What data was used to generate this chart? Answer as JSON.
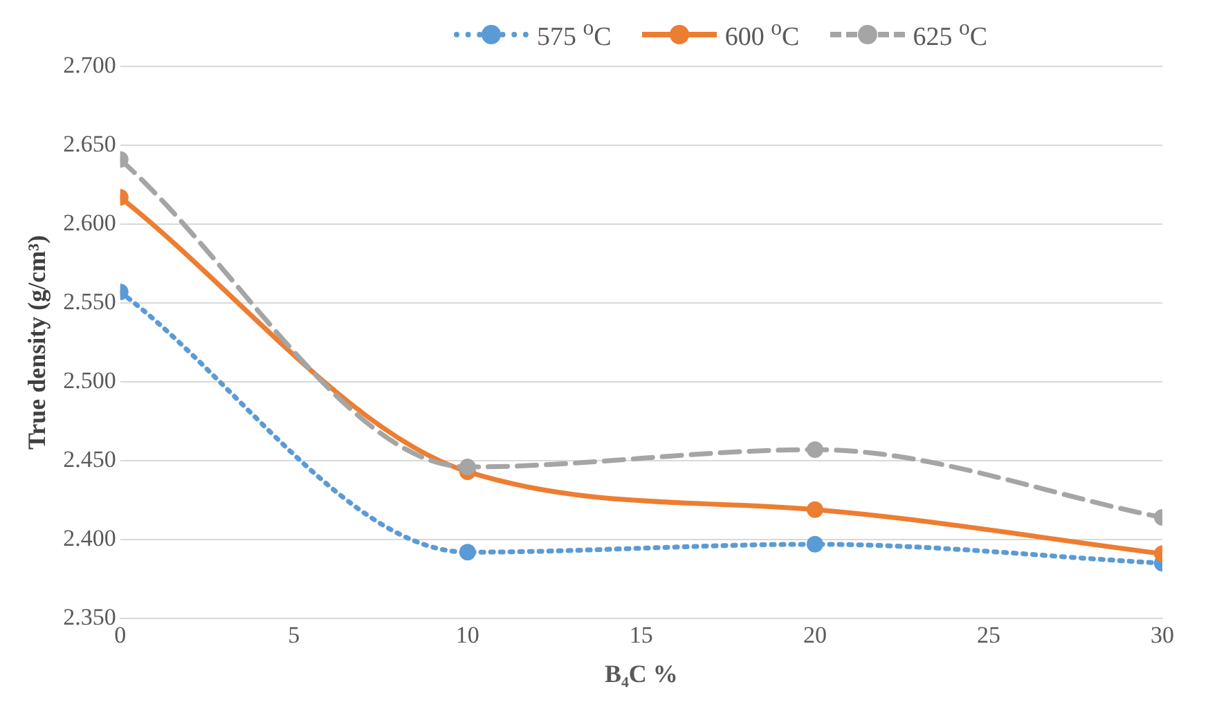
{
  "chart_data": {
    "type": "line",
    "xlabel": "B₄C %",
    "ylabel": "True density (g/cm³)",
    "x": [
      0,
      10,
      20,
      30
    ],
    "series": [
      {
        "name": "575 $^{o}$C",
        "color": "#5b9bd5",
        "line_style": "dotted",
        "values": [
          2.557,
          2.392,
          2.397,
          2.385
        ]
      },
      {
        "name": "600 $^{o}$C",
        "color": "#ed7d31",
        "line_style": "solid",
        "values": [
          2.617,
          2.443,
          2.419,
          2.391
        ]
      },
      {
        "name": "625 $^{o}$C",
        "color": "#a5a5a5",
        "line_style": "dashed",
        "values": [
          2.641,
          2.446,
          2.457,
          2.414
        ]
      }
    ],
    "xlim": [
      0,
      30
    ],
    "xticks": [
      0,
      5,
      10,
      15,
      20,
      25,
      30
    ],
    "ylim": [
      2.35,
      2.7
    ],
    "yticks": [
      {
        "value": 2.35,
        "label": "2.350"
      },
      {
        "value": 2.4,
        "label": "2.400"
      },
      {
        "value": 2.45,
        "label": "2.450"
      },
      {
        "value": 2.5,
        "label": "2.500"
      },
      {
        "value": 2.55,
        "label": "2.550"
      },
      {
        "value": 2.6,
        "label": "2.600"
      },
      {
        "value": 2.65,
        "label": "2.650"
      },
      {
        "value": 2.7,
        "label": "2.700"
      }
    ],
    "grid": "y",
    "legend": "top",
    "marker": "circle"
  }
}
